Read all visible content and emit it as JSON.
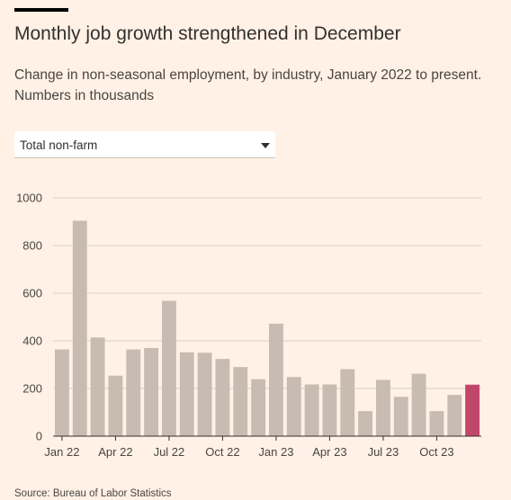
{
  "header": {
    "title": "Monthly job growth strengthened in December",
    "subtitle": "Change in non-seasonal employment, by industry, January 2022 to present. Numbers in thousands"
  },
  "dropdown": {
    "selected": "Total non-farm"
  },
  "source": "Source: Bureau of Labor Statistics",
  "colors": {
    "bar": "#c8bbb1",
    "highlight": "#c0476b",
    "grid": "#d9cfc5",
    "axis": "#33302e"
  },
  "chart_data": {
    "type": "bar",
    "title": "Monthly job growth strengthened in December",
    "categories": [
      "Jan 22",
      "Feb 22",
      "Mar 22",
      "Apr 22",
      "May 22",
      "Jun 22",
      "Jul 22",
      "Aug 22",
      "Sep 22",
      "Oct 22",
      "Nov 22",
      "Dec 22",
      "Jan 23",
      "Feb 23",
      "Mar 23",
      "Apr 23",
      "May 23",
      "Jun 23",
      "Jul 23",
      "Aug 23",
      "Sep 23",
      "Oct 23",
      "Nov 23",
      "Dec 23"
    ],
    "values": [
      364,
      904,
      414,
      254,
      364,
      370,
      568,
      352,
      350,
      324,
      290,
      239,
      472,
      248,
      217,
      217,
      281,
      105,
      236,
      165,
      262,
      105,
      173,
      216
    ],
    "highlight_index": 23,
    "x_tick_labels": [
      "Jan 22",
      "Apr 22",
      "Jul 22",
      "Oct 22",
      "Jan 23",
      "Apr 23",
      "Jul 23",
      "Oct 23"
    ],
    "y_ticks": [
      0,
      200,
      400,
      600,
      800,
      1000
    ],
    "ylim": [
      0,
      1000
    ],
    "xlabel": "",
    "ylabel": "",
    "grid": true
  }
}
